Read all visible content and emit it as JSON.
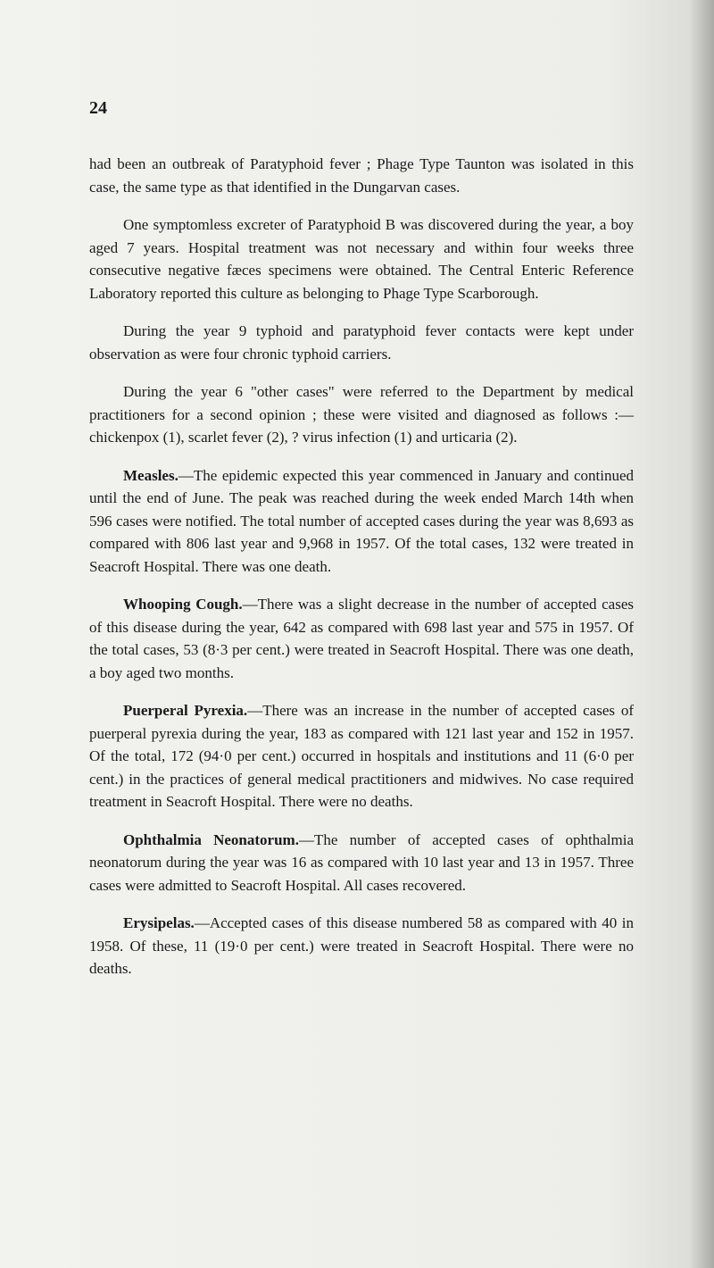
{
  "page_number": "24",
  "paragraphs": {
    "p1": "had been an outbreak of Paratyphoid fever ; Phage Type Taunton was isolated in this case, the same type as that identified in the Dungarvan cases.",
    "p2": "One symptomless excreter of Paratyphoid B was discovered during the year, a boy aged 7 years. Hospital treatment was not necessary and within four weeks three consecutive negative fæces specimens were obtained. The Central Enteric Reference Laboratory reported this culture as belonging to Phage Type Scarborough.",
    "p3": "During the year 9 typhoid and paratyphoid fever contacts were kept under observation as were four chronic typhoid carriers.",
    "p4": "During the year 6 \"other cases\" were referred to the Department by medical practitioners for a second opinion ; these were visited and diagnosed as follows :—chickenpox (1), scarlet fever (2), ? virus infection (1) and urticaria (2).",
    "p5_lead": "Measles.",
    "p5_rest": "—The epidemic expected this year commenced in January and continued until the end of June. The peak was reached during the week ended March 14th when 596 cases were notified. The total number of accepted cases during the year was 8,693 as compared with 806 last year and 9,968 in 1957. Of the total cases, 132 were treated in Seacroft Hospital. There was one death.",
    "p6_lead": "Whooping Cough.",
    "p6_rest": "—There was a slight decrease in the number of accepted cases of this disease during the year, 642 as compared with 698 last year and 575 in 1957. Of the total cases, 53 (8·3 per cent.) were treated in Seacroft Hospital. There was one death, a boy aged two months.",
    "p7_lead": "Puerperal Pyrexia.",
    "p7_rest": "—There was an increase in the number of accepted cases of puerperal pyrexia during the year, 183 as compared with 121 last year and 152 in 1957. Of the total, 172 (94·0 per cent.) occurred in hospitals and institutions and 11 (6·0 per cent.) in the practices of general medical practitioners and midwives. No case required treatment in Seacroft Hospital. There were no deaths.",
    "p8_lead": "Ophthalmia Neonatorum.",
    "p8_rest": "—The number of accepted cases of ophthalmia neonatorum during the year was 16 as compared with 10 last year and 13 in 1957. Three cases were admitted to Seacroft Hospital. All cases recovered.",
    "p9_lead": "Erysipelas.",
    "p9_rest": "—Accepted cases of this disease numbered 58 as compared with 40 in 1958. Of these, 11 (19·0 per cent.) were treated in Seacroft Hospital. There were no deaths."
  }
}
